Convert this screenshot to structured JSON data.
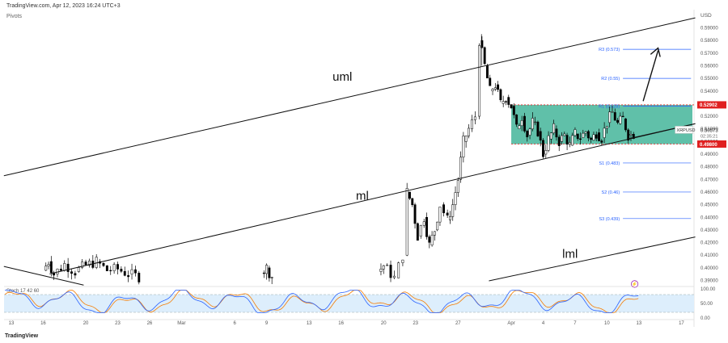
{
  "header": {
    "source_line": "TradingView.com, Apr 12, 2023 16:24 UTC+3",
    "indicator": "Pivots",
    "footer_logo": "TradingView"
  },
  "chart_data": {
    "type": "candlestick",
    "symbol": "XRPUSD",
    "currency_label": "USD",
    "current_price": "0.50573",
    "countdown": "02:35:21",
    "ylim": [
      0.375,
      0.6
    ],
    "price_ticks": [
      "0.59000",
      "0.58000",
      "0.57000",
      "0.56000",
      "0.55000",
      "0.54000",
      "0.53000",
      "0.52000",
      "0.51000",
      "0.50000",
      "0.49000",
      "0.48000",
      "0.47000",
      "0.46000",
      "0.45000",
      "0.44000",
      "0.43000",
      "0.42000",
      "0.41000",
      "0.40000",
      "0.39000"
    ],
    "x_ticks": [
      {
        "label": "13",
        "i": 0
      },
      {
        "label": "16",
        "i": 3
      },
      {
        "label": "20",
        "i": 7
      },
      {
        "label": "23",
        "i": 10
      },
      {
        "label": "26",
        "i": 13
      },
      {
        "label": "Mar",
        "i": 16
      },
      {
        "label": "6",
        "i": 21
      },
      {
        "label": "9",
        "i": 24
      },
      {
        "label": "13",
        "i": 28
      },
      {
        "label": "16",
        "i": 31
      },
      {
        "label": "20",
        "i": 35
      },
      {
        "label": "23",
        "i": 38
      },
      {
        "label": "27",
        "i": 42
      },
      {
        "label": "Apr",
        "i": 47
      },
      {
        "label": "4",
        "i": 50
      },
      {
        "label": "7",
        "i": 53
      },
      {
        "label": "10",
        "i": 56
      },
      {
        "label": "13",
        "i": 59
      },
      {
        "label": "17",
        "i": 63
      }
    ],
    "ohlc_path": [
      {
        "i": 3,
        "p": 0.398
      },
      {
        "i": 3.5,
        "p": 0.405
      },
      {
        "i": 4,
        "p": 0.395
      },
      {
        "i": 5,
        "p": 0.403
      },
      {
        "i": 6,
        "p": 0.397
      },
      {
        "i": 7,
        "p": 0.402
      },
      {
        "i": 8,
        "p": 0.405
      },
      {
        "i": 9,
        "p": 0.398
      },
      {
        "i": 10,
        "p": 0.399
      },
      {
        "i": 11,
        "p": 0.395
      },
      {
        "i": 12,
        "p": 0.393
      },
      {
        "i": 23.5,
        "p": 0.396
      },
      {
        "i": 24,
        "p": 0.4
      },
      {
        "i": 24.5,
        "p": 0.393
      },
      {
        "i": 34.5,
        "p": 0.397
      },
      {
        "i": 35,
        "p": 0.402
      },
      {
        "i": 36,
        "p": 0.392
      },
      {
        "i": 36.8,
        "p": 0.41
      },
      {
        "i": 37.2,
        "p": 0.46
      },
      {
        "i": 37.7,
        "p": 0.45
      },
      {
        "i": 38.2,
        "p": 0.425
      },
      {
        "i": 38.8,
        "p": 0.44
      },
      {
        "i": 39.3,
        "p": 0.418
      },
      {
        "i": 39.8,
        "p": 0.43
      },
      {
        "i": 40.3,
        "p": 0.45
      },
      {
        "i": 41,
        "p": 0.438
      },
      {
        "i": 41.5,
        "p": 0.45
      },
      {
        "i": 42,
        "p": 0.47
      },
      {
        "i": 42.5,
        "p": 0.5
      },
      {
        "i": 43,
        "p": 0.51
      },
      {
        "i": 43.6,
        "p": 0.52
      },
      {
        "i": 44,
        "p": 0.58
      },
      {
        "i": 44.5,
        "p": 0.56
      },
      {
        "i": 45,
        "p": 0.54
      },
      {
        "i": 45.5,
        "p": 0.545
      },
      {
        "i": 46,
        "p": 0.53
      },
      {
        "i": 46.5,
        "p": 0.535
      },
      {
        "i": 47,
        "p": 0.528
      },
      {
        "i": 47.5,
        "p": 0.51
      },
      {
        "i": 48,
        "p": 0.52
      },
      {
        "i": 48.5,
        "p": 0.505
      },
      {
        "i": 49,
        "p": 0.515
      },
      {
        "i": 49.5,
        "p": 0.508
      },
      {
        "i": 50,
        "p": 0.49
      },
      {
        "i": 50.5,
        "p": 0.502
      },
      {
        "i": 51,
        "p": 0.51
      },
      {
        "i": 51.5,
        "p": 0.5
      },
      {
        "i": 52,
        "p": 0.505
      },
      {
        "i": 52.5,
        "p": 0.497
      },
      {
        "i": 53,
        "p": 0.506
      },
      {
        "i": 53.5,
        "p": 0.503
      },
      {
        "i": 54,
        "p": 0.508
      },
      {
        "i": 54.5,
        "p": 0.501
      },
      {
        "i": 55,
        "p": 0.507
      },
      {
        "i": 55.5,
        "p": 0.503
      },
      {
        "i": 56,
        "p": 0.515
      },
      {
        "i": 56.5,
        "p": 0.523
      },
      {
        "i": 57,
        "p": 0.514
      },
      {
        "i": 57.5,
        "p": 0.518
      },
      {
        "i": 58,
        "p": 0.505
      },
      {
        "i": 58.5,
        "p": 0.506
      }
    ],
    "levels": {
      "resistance": {
        "label": "0.52902",
        "price": 0.52902
      },
      "support": {
        "label": "0.49800",
        "price": 0.498
      },
      "zone_color": "#2bab8c"
    },
    "pivots": [
      {
        "label": "R3 (0.573)",
        "price": 0.573
      },
      {
        "label": "R2 (0.55)",
        "price": 0.55
      },
      {
        "label": "R1 (0.528)",
        "price": 0.528
      },
      {
        "label": "S1 (0.483)",
        "price": 0.483
      },
      {
        "label": "S2 (0.46)",
        "price": 0.46
      },
      {
        "label": "S3 (0.439)",
        "price": 0.439
      }
    ],
    "annotations": [
      {
        "name": "uml-label",
        "text": "uml"
      },
      {
        "name": "ml-label",
        "text": "ml"
      },
      {
        "name": "lml-label",
        "text": "lml"
      }
    ],
    "stoch": {
      "label": "Stoch 17 42 60",
      "ticks": [
        "100.00",
        "50.00",
        "0.00"
      ],
      "k_color": "#2962ff",
      "d_color": "#f57c00",
      "band_fill": "#ddeefc"
    },
    "colors": {
      "up": "#000000",
      "down": "#000000",
      "pivot": "#2962ff",
      "level_badge": "#e02020",
      "channel": "#111111"
    }
  }
}
